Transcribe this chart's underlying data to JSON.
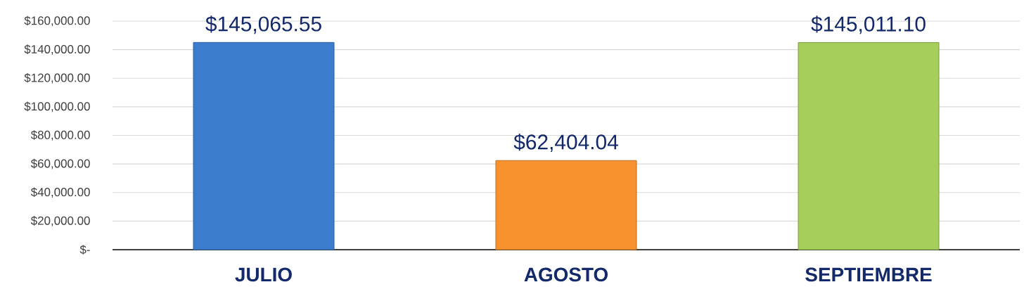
{
  "chart_data": {
    "type": "bar",
    "categories": [
      "JULIO",
      "AGOSTO",
      "SEPTIEMBRE"
    ],
    "values": [
      145065.55,
      62404.04,
      145011.1
    ],
    "colors": [
      "#3b7dcc",
      "#f7922f",
      "#a5cf5a"
    ],
    "value_labels": [
      "$145,065.55",
      "$62,404.04",
      "$145,011.10"
    ],
    "ylim": [
      0,
      160000
    ],
    "yticks": [
      {
        "value": 0,
        "label": "$-"
      },
      {
        "value": 20000,
        "label": "$20,000.00"
      },
      {
        "value": 40000,
        "label": "$40,000.00"
      },
      {
        "value": 60000,
        "label": "$60,000.00"
      },
      {
        "value": 80000,
        "label": "$80,000.00"
      },
      {
        "value": 100000,
        "label": "$100,000.00"
      },
      {
        "value": 120000,
        "label": "$120,000.00"
      },
      {
        "value": 140000,
        "label": "$140,000.00"
      },
      {
        "value": 160000,
        "label": "$160,000.00"
      }
    ],
    "grid": "y"
  }
}
